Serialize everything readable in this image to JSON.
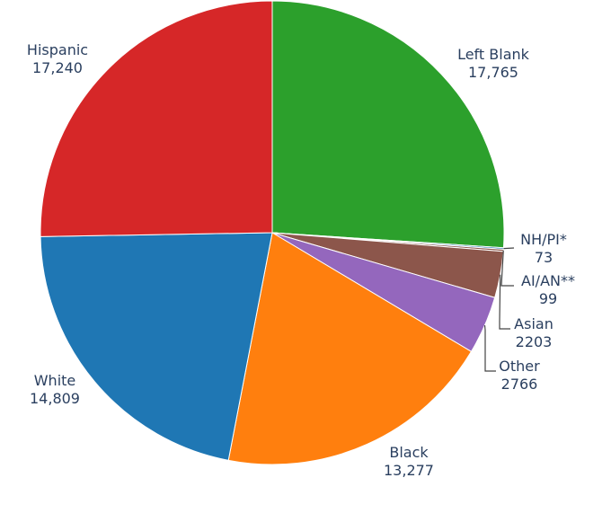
{
  "chart_data": {
    "type": "pie",
    "categories": [
      "Left Blank",
      "NH/PI*",
      "AI/AN**",
      "Asian",
      "Other",
      "Black",
      "White",
      "Hispanic"
    ],
    "values": [
      17765,
      73,
      99,
      2203,
      2766,
      13277,
      14809,
      17240
    ],
    "value_labels": [
      "17,765",
      "73",
      "99",
      "2203",
      "2766",
      "13,277",
      "14,809",
      "17,240"
    ],
    "colors": [
      "#2ca02c",
      "#1f77b4",
      "#8c564b",
      "#8c564b",
      "#9467bd",
      "#ff7f0e",
      "#1f77b4",
      "#d62728"
    ],
    "direction": "clockwise",
    "start_angle": "top",
    "legend": "none"
  }
}
